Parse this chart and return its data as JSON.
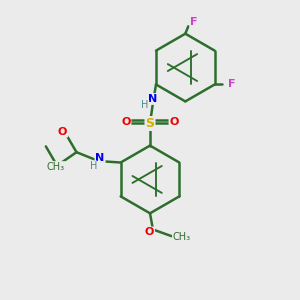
{
  "background_color": "#ebebeb",
  "bond_color": "#2d6e2d",
  "bond_width": 1.8,
  "dbo": 0.08,
  "figsize": [
    3.0,
    3.0
  ],
  "dpi": 100,
  "atoms": {
    "S": {
      "color": "#d4b000"
    },
    "O": {
      "color": "#ee0000"
    },
    "N": {
      "color": "#0000ee"
    },
    "H": {
      "color": "#4a8a8a"
    },
    "F": {
      "color": "#cc44cc"
    },
    "C": {
      "color": "#2d6e2d"
    }
  }
}
